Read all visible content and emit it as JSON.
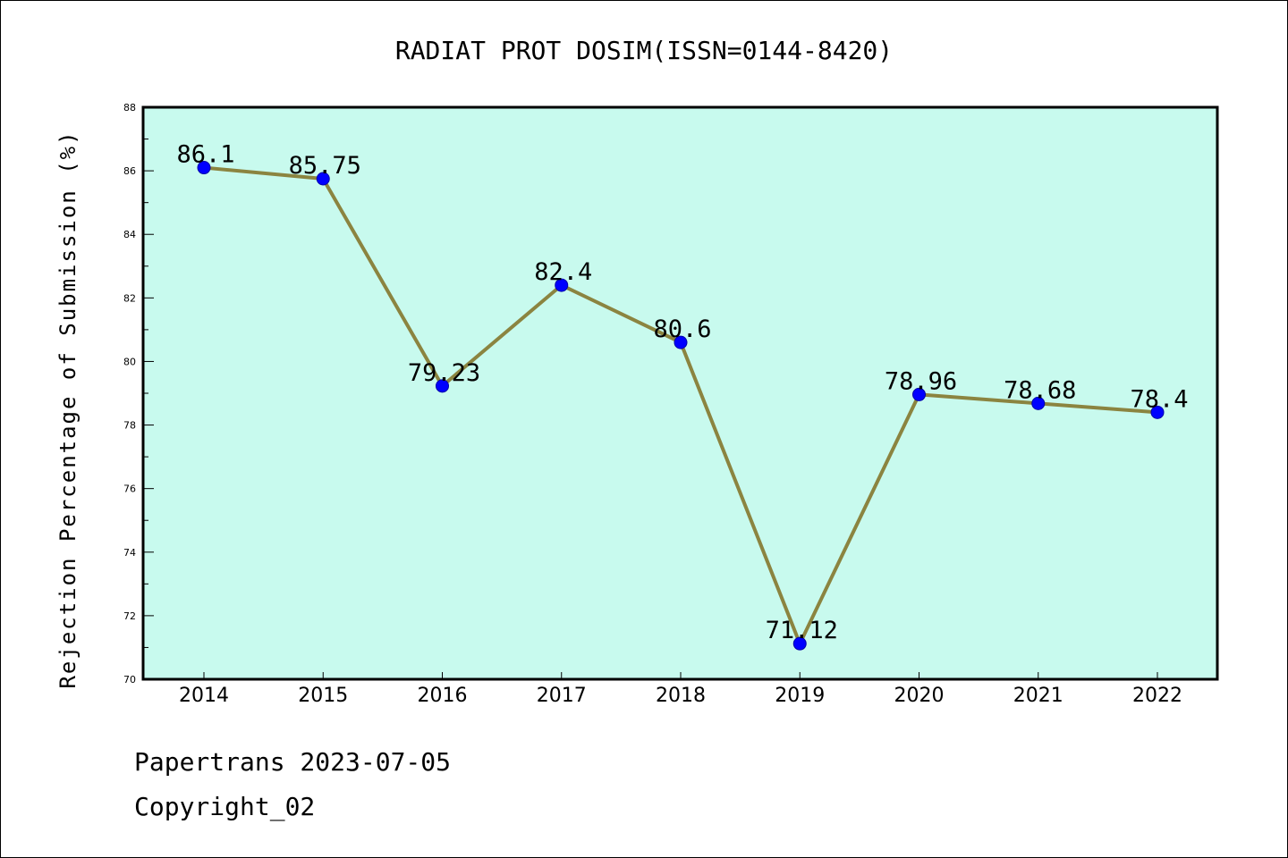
{
  "chart_data": {
    "type": "line",
    "title": "RADIAT PROT DOSIM(ISSN=0144-8420)",
    "ylabel": "Rejection Percentage of Submission (%)",
    "xlabel": "",
    "categories": [
      "2014",
      "2015",
      "2016",
      "2017",
      "2018",
      "2019",
      "2020",
      "2021",
      "2022"
    ],
    "series": [
      {
        "values": [
          86.1,
          85.75,
          79.23,
          82.4,
          80.6,
          71.12,
          78.96,
          78.68,
          78.4
        ]
      }
    ],
    "data_labels": [
      "86.1",
      "85.75",
      "79.23",
      "82.4",
      "80.6",
      "71.12",
      "78.96",
      "78.68",
      "78.4"
    ],
    "ylim": [
      70,
      88
    ],
    "yticks": [
      70,
      72,
      74,
      76,
      78,
      80,
      82,
      84,
      86,
      88
    ],
    "grid": false,
    "colors": {
      "plot_background": "#c8faee",
      "line": "#8b8440",
      "marker": "#0000ff"
    }
  },
  "footer": {
    "line1": "Papertrans 2023-07-05",
    "line2": "Copyright_02"
  }
}
